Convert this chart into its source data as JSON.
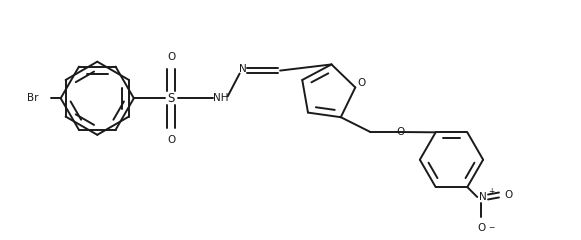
{
  "background_color": "#ffffff",
  "line_color": "#1a1a1a",
  "line_width": 1.4,
  "figsize": [
    5.81,
    2.4
  ],
  "dpi": 100,
  "xlim": [
    0,
    5.81
  ],
  "ylim": [
    0,
    2.4
  ]
}
